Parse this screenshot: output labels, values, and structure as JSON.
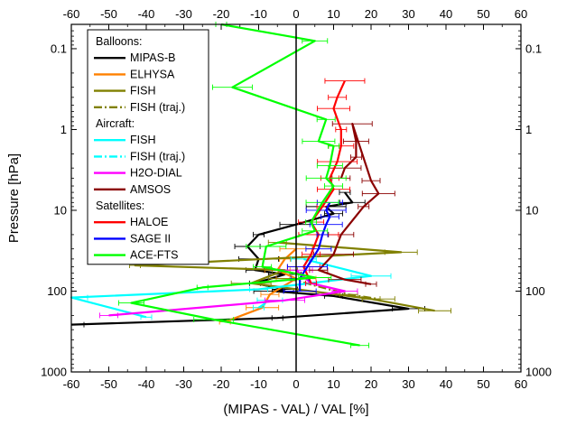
{
  "chart_data": {
    "type": "line",
    "xlabel": "(MIPAS - VAL) / VAL [%]",
    "ylabel": "Pressure [hPa]",
    "xlim": [
      -60,
      60
    ],
    "ylim": [
      0.05,
      1000
    ],
    "yscale": "log",
    "x_ticks": [
      "-60",
      "-50",
      "-40",
      "-30",
      "-20",
      "-10",
      "0",
      "10",
      "20",
      "30",
      "40",
      "50",
      "60"
    ],
    "y_ticks": [
      "0.1",
      "1",
      "10",
      "100",
      "1000"
    ],
    "y_tick_values": [
      0.1,
      1,
      10,
      100,
      1000
    ],
    "legend_position": "top-left",
    "legend_groups": [
      {
        "title": "Balloons:",
        "entries": [
          "MIPAS-B",
          "ELHYSA",
          "FISH",
          "FISH (traj.)"
        ]
      },
      {
        "title": "Aircraft:",
        "entries": [
          "FISH",
          "FISH (traj.)",
          "H2O-DIAL",
          "AMSOS"
        ]
      },
      {
        "title": "Satellites:",
        "entries": [
          "HALOE",
          "SAGE II",
          "ACE-FTS"
        ]
      }
    ],
    "series": [
      {
        "name": "MIPAS-B",
        "color": "#000000",
        "dash": "solid",
        "points": [
          [
            13,
            6
          ],
          [
            15,
            8
          ],
          [
            8,
            9
          ],
          [
            10,
            11
          ],
          [
            0,
            15
          ],
          [
            -10,
            20
          ],
          [
            -13,
            28
          ],
          [
            -10,
            40
          ],
          [
            -11,
            55
          ],
          [
            -3,
            62
          ],
          [
            -11,
            80
          ],
          [
            -3,
            95
          ],
          [
            -6,
            100
          ],
          [
            10,
            115
          ],
          [
            30,
            165
          ],
          [
            -5,
            215
          ],
          [
            -60,
            260
          ]
        ]
      },
      {
        "name": "ELHYSA",
        "color": "#ff8000",
        "dash": "solid",
        "points": [
          [
            0,
            30
          ],
          [
            -3,
            40
          ],
          [
            -5,
            55
          ],
          [
            0,
            70
          ],
          [
            -7,
            110
          ],
          [
            -9,
            160
          ],
          [
            -19,
            240
          ]
        ]
      },
      {
        "name": "FISH",
        "color": "#808000",
        "dash": "solid",
        "points": [
          [
            -5,
            25
          ],
          [
            28,
            33
          ],
          [
            -43,
            48
          ],
          [
            -3,
            55
          ],
          [
            -12,
            80
          ],
          [
            20,
            125
          ],
          [
            37,
            175
          ]
        ]
      },
      {
        "name": "FISH (traj.)",
        "color": "#808000",
        "dash": "dashdot",
        "points": [
          [
            -2,
            70
          ],
          [
            14,
            110
          ],
          [
            22,
            125
          ]
        ]
      },
      {
        "name": "FISH (aircraft)",
        "color": "#00ffff",
        "dash": "solid",
        "points": [
          [
            2,
            40
          ],
          [
            20,
            65
          ],
          [
            -10,
            95
          ],
          [
            -60,
            120
          ],
          [
            -40,
            210
          ]
        ]
      },
      {
        "name": "FISH (traj., aircraft)",
        "color": "#00ffff",
        "dash": "dashdot",
        "points": [
          [
            -10,
            160
          ],
          [
            -7,
            130
          ]
        ]
      },
      {
        "name": "H2O-DIAL",
        "color": "#ff00ff",
        "dash": "solid",
        "points": [
          [
            0,
            55
          ],
          [
            4,
            80
          ],
          [
            13,
            100
          ],
          [
            -3,
            130
          ],
          [
            -50,
            200
          ]
        ]
      },
      {
        "name": "AMSOS",
        "color": "#8b0000",
        "dash": "solid",
        "points": [
          [
            12,
            4
          ],
          [
            13,
            3
          ],
          [
            16,
            2.2
          ],
          [
            16,
            1.4
          ],
          [
            15,
            0.85
          ],
          [
            20,
            4.3
          ],
          [
            22,
            6.2
          ],
          [
            18,
            9
          ],
          [
            12,
            20
          ],
          [
            10,
            35
          ],
          [
            6,
            55
          ],
          [
            13,
            72
          ],
          [
            20,
            82
          ]
        ]
      },
      {
        "name": "HALOE",
        "color": "#ff0000",
        "dash": "solid",
        "points": [
          [
            13,
            0.25
          ],
          [
            11,
            0.4
          ],
          [
            10,
            0.55
          ],
          [
            12,
            1
          ],
          [
            12,
            1.6
          ],
          [
            11,
            2.5
          ],
          [
            9,
            4
          ],
          [
            10,
            5.5
          ],
          [
            7,
            9
          ],
          [
            4,
            14
          ],
          [
            6,
            20
          ],
          [
            4,
            35
          ],
          [
            2,
            50
          ],
          [
            4,
            80
          ]
        ]
      },
      {
        "name": "SAGE II",
        "color": "#0000ff",
        "dash": "solid",
        "points": [
          [
            9,
            8
          ],
          [
            8,
            10
          ],
          [
            9,
            12
          ],
          [
            8,
            15
          ],
          [
            7,
            20
          ],
          [
            6,
            30
          ],
          [
            3,
            50
          ],
          [
            1,
            70
          ],
          [
            1,
            100
          ]
        ]
      },
      {
        "name": "ACE-FTS",
        "color": "#00ff00",
        "dash": "solid",
        "points": [
          [
            -20,
            0.035
          ],
          [
            5,
            0.08
          ],
          [
            -17,
            0.3
          ],
          [
            8,
            0.75
          ],
          [
            6,
            1.4
          ],
          [
            10,
            1.6
          ],
          [
            9,
            2.8
          ],
          [
            8,
            4
          ],
          [
            10,
            5
          ],
          [
            7,
            8
          ],
          [
            4,
            14
          ],
          [
            5,
            18
          ],
          [
            -8,
            28
          ],
          [
            -9,
            50
          ],
          [
            5,
            68
          ],
          [
            -25,
            90
          ],
          [
            -44,
            140
          ],
          [
            -22,
            225
          ],
          [
            17,
            470
          ]
        ]
      }
    ]
  }
}
